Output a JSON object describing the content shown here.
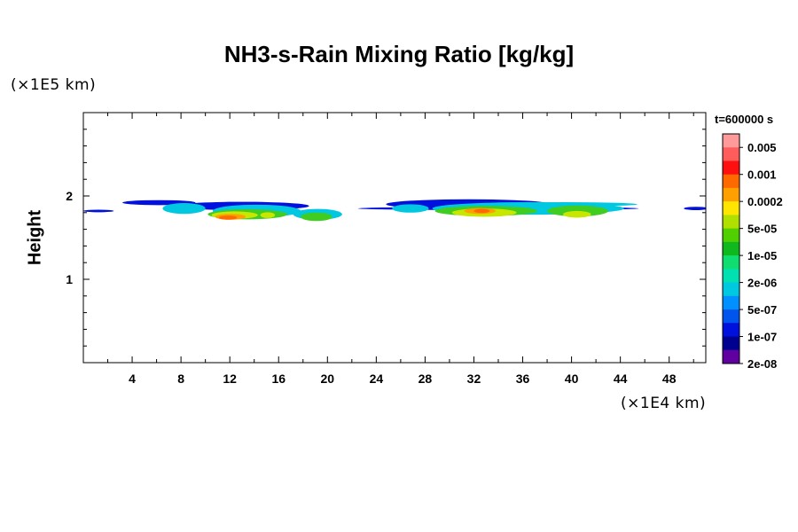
{
  "chart_data": {
    "type": "heatmap",
    "title": "NH3-s-Rain Mixing Ratio [kg/kg]",
    "ylabel": "Height",
    "y_unit_label": "(×1E5 km)",
    "x_unit_label": "(×1E4 km)",
    "time_label": "t=600000 s",
    "xlim": [
      0,
      51
    ],
    "ylim": [
      0,
      3
    ],
    "x_ticks": [
      4,
      8,
      12,
      16,
      20,
      24,
      28,
      32,
      36,
      40,
      44,
      48
    ],
    "x_tick_labels": [
      "4",
      "8",
      "12",
      "16",
      "20",
      "24",
      "28",
      "32",
      "36",
      "40",
      "44",
      "48"
    ],
    "y_ticks": [
      1,
      2
    ],
    "y_tick_labels": [
      "1",
      "2"
    ],
    "colorbar": {
      "labels": [
        "0.005",
        "0.001",
        "0.0002",
        "5e-05",
        "1e-05",
        "2e-06",
        "5e-07",
        "1e-07",
        "2e-08"
      ],
      "colors": [
        "#ff9a9a",
        "#ff5c5c",
        "#ff1010",
        "#ff6a00",
        "#ffa000",
        "#ffe600",
        "#b0e000",
        "#50d000",
        "#10b820",
        "#10dd70",
        "#00e0b0",
        "#00c8e0",
        "#0090ff",
        "#0055ee",
        "#0010dd",
        "#000090",
        "#6000a0"
      ]
    },
    "cloud_layers": [
      {
        "name": "band",
        "level": 1,
        "blobs": [
          [
            0,
            1.82,
            2.5,
            0.03
          ],
          [
            3.2,
            1.92,
            6.0,
            0.06
          ],
          [
            7.5,
            1.88,
            11,
            0.1
          ],
          [
            22.5,
            1.85,
            23,
            0.04
          ],
          [
            24.8,
            1.9,
            13.5,
            0.12
          ],
          [
            49.2,
            1.85,
            2.0,
            0.04
          ]
        ]
      },
      {
        "name": "blue",
        "level": 2,
        "blobs": [
          [
            6.5,
            1.85,
            3.5,
            0.13
          ],
          [
            10.6,
            1.82,
            7.2,
            0.15
          ],
          [
            17.2,
            1.78,
            4.0,
            0.13
          ],
          [
            25.3,
            1.85,
            3.0,
            0.1
          ],
          [
            28.6,
            1.85,
            15.7,
            0.15
          ],
          [
            33.8,
            1.9,
            11.6,
            0.05
          ]
        ]
      },
      {
        "name": "green",
        "level": 3,
        "blobs": [
          [
            10.2,
            1.78,
            6.5,
            0.12
          ],
          [
            17.8,
            1.75,
            2.6,
            0.1
          ],
          [
            28.8,
            1.82,
            8.4,
            0.12
          ],
          [
            38.0,
            1.82,
            5.0,
            0.13
          ]
        ]
      },
      {
        "name": "yellow-green",
        "level": 4,
        "blobs": [
          [
            10.5,
            1.77,
            3.8,
            0.09
          ],
          [
            14.5,
            1.77,
            1.2,
            0.07
          ],
          [
            30.2,
            1.8,
            5.3,
            0.1
          ],
          [
            39.3,
            1.78,
            2.3,
            0.08
          ]
        ]
      },
      {
        "name": "yellow",
        "level": 5,
        "blobs": [
          [
            10.8,
            1.75,
            2.5,
            0.07
          ],
          [
            31.2,
            1.82,
            2.6,
            0.07
          ]
        ]
      },
      {
        "name": "orange",
        "level": 6,
        "blobs": [
          [
            11.1,
            1.74,
            1.5,
            0.05
          ],
          [
            32.0,
            1.82,
            1.3,
            0.05
          ]
        ]
      }
    ]
  }
}
